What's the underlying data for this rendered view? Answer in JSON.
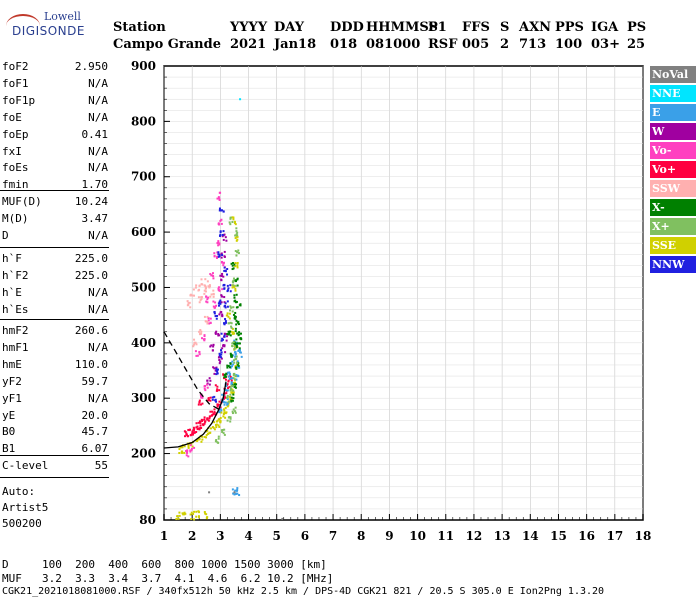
{
  "logo": {
    "top": "Lowell",
    "main": "DIGISONDE"
  },
  "header": {
    "row1": [
      {
        "text": "Station"
      },
      {
        "text": "YYYY"
      },
      {
        "text": "DAY"
      },
      {
        "text": "DDD"
      },
      {
        "text": "HHMMSS"
      },
      {
        "text": "P1"
      },
      {
        "text": "FFS"
      },
      {
        "text": "S"
      },
      {
        "text": "AXN"
      },
      {
        "text": "PPS"
      },
      {
        "text": "IGA"
      },
      {
        "text": "PS"
      }
    ],
    "row2": [
      {
        "text": "Campo Grande"
      },
      {
        "text": "2021"
      },
      {
        "text": "Jan18"
      },
      {
        "text": "018"
      },
      {
        "text": "081000"
      },
      {
        "text": "RSF"
      },
      {
        "text": "005"
      },
      {
        "text": "2"
      },
      {
        "text": "713"
      },
      {
        "text": "100"
      },
      {
        "text": "03+"
      },
      {
        "text": "25"
      }
    ]
  },
  "params_group1": [
    {
      "k": "foF2",
      "v": "2.950"
    },
    {
      "k": "foF1",
      "v": "N/A"
    },
    {
      "k": "foF1p",
      "v": "N/A"
    },
    {
      "k": "foE",
      "v": "N/A"
    },
    {
      "k": "foEp",
      "v": "0.41"
    },
    {
      "k": "fxI",
      "v": "N/A"
    },
    {
      "k": "foEs",
      "v": "N/A"
    },
    {
      "k": "fmin",
      "v": "1.70"
    }
  ],
  "params_group2": [
    {
      "k": "MUF(D)",
      "v": "10.24"
    },
    {
      "k": "M(D)",
      "v": "3.47"
    },
    {
      "k": "D",
      "v": "N/A"
    }
  ],
  "params_group3": [
    {
      "k": "h`F",
      "v": "225.0"
    },
    {
      "k": "h`F2",
      "v": "225.0"
    },
    {
      "k": "h`E",
      "v": "N/A"
    },
    {
      "k": "h`Es",
      "v": "N/A"
    }
  ],
  "params_group4": [
    {
      "k": "hmF2",
      "v": "260.6"
    },
    {
      "k": "hmF1",
      "v": "N/A"
    },
    {
      "k": "hmE",
      "v": "110.0"
    },
    {
      "k": "yF2",
      "v": "59.7"
    },
    {
      "k": "yF1",
      "v": "N/A"
    },
    {
      "k": "yE",
      "v": "20.0"
    },
    {
      "k": "B0",
      "v": "45.7"
    },
    {
      "k": "B1",
      "v": "6.07"
    }
  ],
  "params_group5": [
    {
      "k": "C-level",
      "v": "55"
    }
  ],
  "auto": {
    "line1": "Auto:",
    "line2": "Artist5",
    "line3": "500200"
  },
  "legend": [
    {
      "label": "NoVal",
      "color": "#808080"
    },
    {
      "label": "NNE",
      "color": "#00e5ff"
    },
    {
      "label": "E",
      "color": "#3aa0e8"
    },
    {
      "label": "W",
      "color": "#a000a0"
    },
    {
      "label": "Vo-",
      "color": "#ff40c0"
    },
    {
      "label": "Vo+",
      "color": "#ff0040"
    },
    {
      "label": "SSW",
      "color": "#ffb0b0"
    },
    {
      "label": "X-",
      "color": "#008000"
    },
    {
      "label": "X+",
      "color": "#80c060"
    },
    {
      "label": "SSE",
      "color": "#d0d000"
    },
    {
      "label": "NNW",
      "color": "#2020e0"
    }
  ],
  "bottom": {
    "d_label": "D",
    "d_values": "100  200  400  600  800 1000 1500 3000 [km]",
    "muf_label": "MUF",
    "muf_values": "3.2  3.3  3.4  3.7  4.1  4.6  6.2 10.2 [MHz]",
    "footer": "CGK21_2021018081000.RSF / 340fx512h 50 kHz 2.5 km / DPS-4D CGK21 821 / 20.5 S 305.0 E Ion2Png 1.3.20"
  },
  "chart_data": {
    "type": "scatter",
    "xlim": [
      1,
      18
    ],
    "ylim": [
      80,
      900
    ],
    "x_ticks": [
      "1",
      "2",
      "3",
      "4",
      "5",
      "6",
      "7",
      "8",
      "9",
      "10",
      "11",
      "12",
      "13",
      "14",
      "15",
      "16",
      "17",
      "18"
    ],
    "y_ticks": [
      "80",
      "200",
      "300",
      "400",
      "500",
      "600",
      "700",
      "800",
      "900"
    ],
    "y_tick_values": [
      80,
      200,
      300,
      400,
      500,
      600,
      700,
      800,
      900
    ],
    "grid": true,
    "trace_o_profile": [
      [
        1.0,
        210
      ],
      [
        1.5,
        212
      ],
      [
        2.0,
        220
      ],
      [
        2.4,
        235
      ],
      [
        2.7,
        255
      ],
      [
        2.95,
        280
      ],
      [
        3.1,
        300
      ],
      [
        3.2,
        330
      ]
    ],
    "trace_dashed": [
      [
        1.0,
        420
      ],
      [
        1.4,
        385
      ],
      [
        1.8,
        350
      ],
      [
        2.2,
        315
      ],
      [
        2.6,
        290
      ],
      [
        2.95,
        280
      ]
    ],
    "clusters": [
      {
        "series": "Vo+",
        "color": "#ff0040",
        "points": [
          [
            1.8,
            235
          ],
          [
            2.0,
            240
          ],
          [
            2.2,
            248
          ],
          [
            2.4,
            255
          ],
          [
            2.6,
            265
          ],
          [
            2.8,
            275
          ],
          [
            3.0,
            290
          ],
          [
            3.2,
            310
          ],
          [
            3.35,
            335
          ],
          [
            1.9,
            238
          ],
          [
            2.1,
            244
          ],
          [
            2.3,
            252
          ],
          [
            2.5,
            260
          ],
          [
            2.7,
            270
          ],
          [
            2.9,
            282
          ],
          [
            3.1,
            300
          ],
          [
            3.3,
            325
          ],
          [
            2.3,
            290
          ],
          [
            2.6,
            300
          ],
          [
            2.9,
            320
          ],
          [
            3.15,
            340
          ]
        ]
      },
      {
        "series": "SSE",
        "color": "#d0d000",
        "points": [
          [
            1.6,
            205
          ],
          [
            1.9,
            215
          ],
          [
            2.2,
            225
          ],
          [
            2.5,
            235
          ],
          [
            2.8,
            250
          ],
          [
            3.0,
            262
          ],
          [
            3.2,
            280
          ],
          [
            3.4,
            305
          ],
          [
            3.5,
            330
          ],
          [
            3.6,
            360
          ],
          [
            3.55,
            390
          ],
          [
            3.45,
            420
          ],
          [
            3.3,
            450
          ],
          [
            3.5,
            500
          ],
          [
            3.55,
            540
          ],
          [
            3.6,
            590
          ],
          [
            3.5,
            620
          ],
          [
            1.7,
            208
          ],
          [
            2.0,
            218
          ],
          [
            2.3,
            228
          ],
          [
            2.6,
            240
          ],
          [
            2.9,
            255
          ],
          [
            3.1,
            270
          ],
          [
            3.3,
            292
          ],
          [
            3.45,
            315
          ],
          [
            1.5,
            87
          ],
          [
            1.7,
            88
          ],
          [
            2.0,
            88
          ],
          [
            2.2,
            90
          ],
          [
            2.5,
            90
          ]
        ]
      },
      {
        "series": "E",
        "color": "#3aa0e8",
        "points": [
          [
            3.0,
            280
          ],
          [
            3.1,
            300
          ],
          [
            3.2,
            320
          ],
          [
            3.3,
            340
          ],
          [
            3.4,
            360
          ],
          [
            3.5,
            380
          ],
          [
            3.55,
            400
          ],
          [
            3.4,
            330
          ],
          [
            3.2,
            295
          ],
          [
            3.6,
            340
          ],
          [
            3.65,
            360
          ],
          [
            3.7,
            380
          ],
          [
            3.5,
            130
          ],
          [
            3.6,
            132
          ]
        ]
      },
      {
        "series": "NNE",
        "color": "#00e5ff",
        "points": [
          [
            3.7,
            840
          ]
        ]
      },
      {
        "series": "W",
        "color": "#a000a0",
        "points": [
          [
            2.6,
            330
          ],
          [
            2.8,
            350
          ],
          [
            3.0,
            370
          ],
          [
            3.1,
            390
          ],
          [
            3.2,
            410
          ],
          [
            2.9,
            420
          ],
          [
            3.0,
            450
          ],
          [
            3.1,
            480
          ],
          [
            2.7,
            390
          ],
          [
            3.05,
            520
          ],
          [
            3.1,
            560
          ],
          [
            3.15,
            590
          ]
        ]
      },
      {
        "series": "Vo-",
        "color": "#ff40c0",
        "points": [
          [
            2.2,
            380
          ],
          [
            2.4,
            410
          ],
          [
            2.6,
            440
          ],
          [
            2.8,
            470
          ],
          [
            3.0,
            500
          ],
          [
            3.1,
            540
          ],
          [
            2.9,
            580
          ],
          [
            3.0,
            620
          ],
          [
            2.95,
            665
          ],
          [
            2.5,
            480
          ],
          [
            2.7,
            520
          ],
          [
            2.85,
            560
          ],
          [
            2.3,
            300
          ],
          [
            2.5,
            320
          ],
          [
            1.85,
            200
          ],
          [
            2.0,
            210
          ]
        ]
      },
      {
        "series": "SSW",
        "color": "#ffb0b0",
        "points": [
          [
            1.9,
            470
          ],
          [
            2.0,
            490
          ],
          [
            2.2,
            500
          ],
          [
            2.4,
            510
          ],
          [
            2.6,
            505
          ],
          [
            2.3,
            480
          ],
          [
            2.5,
            495
          ],
          [
            2.7,
            490
          ],
          [
            2.1,
            400
          ],
          [
            2.3,
            420
          ],
          [
            2.5,
            440
          ]
        ]
      },
      {
        "series": "X-",
        "color": "#008000",
        "points": [
          [
            3.2,
            340
          ],
          [
            3.3,
            360
          ],
          [
            3.4,
            380
          ],
          [
            3.5,
            400
          ],
          [
            3.6,
            420
          ],
          [
            3.5,
            450
          ],
          [
            3.55,
            480
          ],
          [
            3.6,
            510
          ],
          [
            3.45,
            540
          ],
          [
            3.3,
            420
          ],
          [
            3.6,
            440
          ],
          [
            3.65,
            470
          ],
          [
            3.4,
            300
          ],
          [
            3.5,
            320
          ],
          [
            3.6,
            360
          ],
          [
            3.65,
            395
          ],
          [
            3.7,
            410
          ]
        ]
      },
      {
        "series": "X+",
        "color": "#80c060",
        "points": [
          [
            3.3,
            300
          ],
          [
            3.4,
            320
          ],
          [
            3.5,
            340
          ],
          [
            3.55,
            370
          ],
          [
            3.45,
            395
          ],
          [
            3.35,
            430
          ],
          [
            3.4,
            460
          ],
          [
            3.5,
            510
          ],
          [
            3.6,
            560
          ],
          [
            3.55,
            600
          ],
          [
            3.4,
            620
          ],
          [
            2.9,
            225
          ],
          [
            3.1,
            240
          ],
          [
            3.3,
            260
          ],
          [
            3.5,
            280
          ]
        ]
      },
      {
        "series": "NNW",
        "color": "#2020e0",
        "points": [
          [
            2.9,
            350
          ],
          [
            3.0,
            380
          ],
          [
            3.1,
            410
          ],
          [
            3.2,
            440
          ],
          [
            3.0,
            470
          ],
          [
            3.1,
            500
          ],
          [
            3.2,
            530
          ],
          [
            3.0,
            560
          ],
          [
            3.05,
            600
          ],
          [
            3.05,
            640
          ],
          [
            2.85,
            450
          ],
          [
            3.2,
            470
          ],
          [
            3.3,
            500
          ],
          [
            2.8,
            300
          ]
        ]
      },
      {
        "series": "NoVal",
        "color": "#808080",
        "points": [
          [
            2.6,
            130
          ],
          [
            3.5,
            130
          ],
          [
            5.2,
            82
          ]
        ]
      }
    ]
  }
}
